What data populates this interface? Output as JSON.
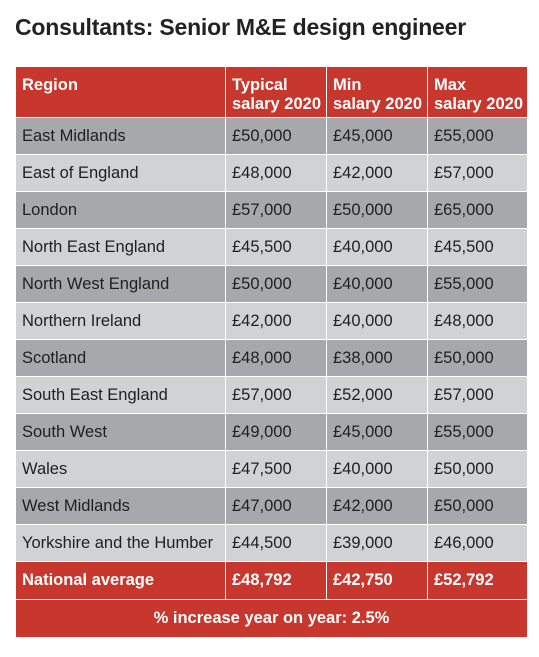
{
  "title": "Consultants: Senior M&E design engineer",
  "headers": {
    "region": "Region",
    "typical_l1": "Typical",
    "typical_l2": "salary 2020",
    "min_l1": "Min",
    "min_l2": "salary 2020",
    "max_l1": "Max",
    "max_l2": "salary 2020"
  },
  "rows": [
    {
      "region": "East Midlands",
      "typical": "£50,000",
      "min": "£45,000",
      "max": "£55,000"
    },
    {
      "region": "East of England",
      "typical": "£48,000",
      "min": "£42,000",
      "max": "£57,000"
    },
    {
      "region": "London",
      "typical": "£57,000",
      "min": "£50,000",
      "max": "£65,000"
    },
    {
      "region": "North East England",
      "typical": "£45,500",
      "min": "£40,000",
      "max": "£45,500"
    },
    {
      "region": "North West England",
      "typical": "£50,000",
      "min": "£40,000",
      "max": "£55,000"
    },
    {
      "region": "Northern Ireland",
      "typical": "£42,000",
      "min": "£40,000",
      "max": "£48,000"
    },
    {
      "region": "Scotland",
      "typical": "£48,000",
      "min": "£38,000",
      "max": "£50,000"
    },
    {
      "region": "South East England",
      "typical": "£57,000",
      "min": "£52,000",
      "max": "£57,000"
    },
    {
      "region": "South West",
      "typical": "£49,000",
      "min": "£45,000",
      "max": "£55,000"
    },
    {
      "region": "Wales",
      "typical": "£47,500",
      "min": "£40,000",
      "max": "£50,000"
    },
    {
      "region": "West Midlands",
      "typical": "£47,000",
      "min": "£42,000",
      "max": "£50,000"
    },
    {
      "region": "Yorkshire and the Humber",
      "typical": "£44,500",
      "min": "£39,000",
      "max": "£46,000"
    }
  ],
  "national": {
    "label": "National average",
    "typical": "£48,792",
    "min": "£42,750",
    "max": "£52,792"
  },
  "footer": "% increase year on year: 2.5%",
  "colors": {
    "accent_red": "#c8372d",
    "row_dark": "#a7a8ab",
    "row_light": "#d1d2d4"
  }
}
